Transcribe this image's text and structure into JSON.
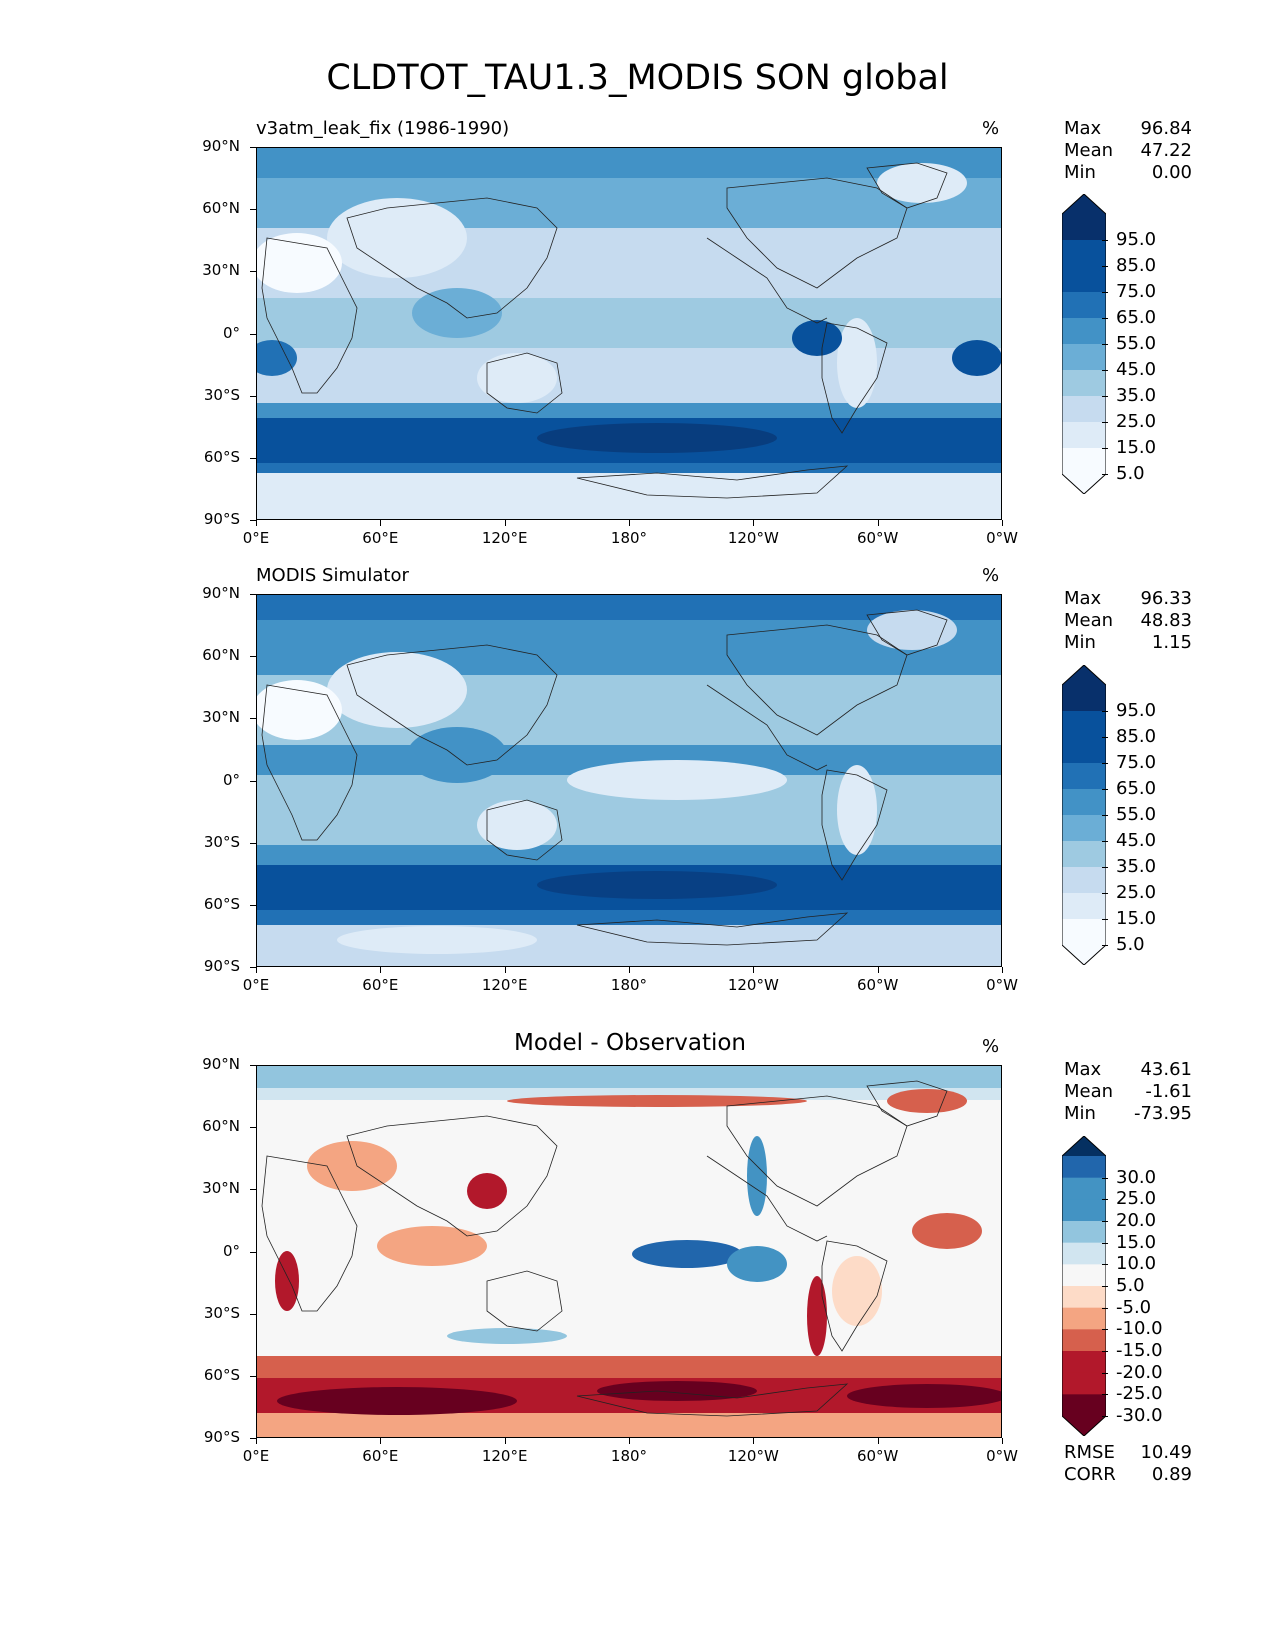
{
  "figure": {
    "title": "CLDTOT_TAU1.3_MODIS SON global"
  },
  "axes": {
    "lat_ticks": [
      "90°N",
      "60°N",
      "30°N",
      "0°",
      "30°S",
      "60°S",
      "90°S"
    ],
    "lon_ticks": [
      "0°E",
      "60°E",
      "120°E",
      "180°",
      "120°W",
      "60°W",
      "0°W"
    ]
  },
  "panels": [
    {
      "title": "v3atm_leak_fix (1986-1990)",
      "units": "%",
      "stats": [
        {
          "label": "Max",
          "value": "96.84"
        },
        {
          "label": "Mean",
          "value": "47.22"
        },
        {
          "label": "Min",
          "value": "0.00"
        }
      ],
      "colorbar_labels": [
        "95.0",
        "85.0",
        "75.0",
        "65.0",
        "55.0",
        "45.0",
        "35.0",
        "25.0",
        "15.0",
        "5.0"
      ]
    },
    {
      "title": "MODIS Simulator",
      "units": "%",
      "stats": [
        {
          "label": "Max",
          "value": "96.33"
        },
        {
          "label": "Mean",
          "value": "48.83"
        },
        {
          "label": "Min",
          "value": "1.15"
        }
      ],
      "colorbar_labels": [
        "95.0",
        "85.0",
        "75.0",
        "65.0",
        "55.0",
        "45.0",
        "35.0",
        "25.0",
        "15.0",
        "5.0"
      ]
    },
    {
      "title": "Model - Observation",
      "units": "%",
      "stats": [
        {
          "label": "Max",
          "value": "43.61"
        },
        {
          "label": "Mean",
          "value": "-1.61"
        },
        {
          "label": "Min",
          "value": "-73.95"
        }
      ],
      "colorbar_labels": [
        "30.0",
        "25.0",
        "20.0",
        "15.0",
        "10.0",
        "5.0",
        "-5.0",
        "-10.0",
        "-15.0",
        "-20.0",
        "-25.0",
        "-30.0"
      ],
      "metrics": [
        {
          "label": "RMSE",
          "value": "10.49"
        },
        {
          "label": "CORR",
          "value": "0.89"
        }
      ]
    }
  ],
  "colors": {
    "blues": [
      "#f7fbff",
      "#deebf7",
      "#c6dbef",
      "#9ecae1",
      "#6baed6",
      "#4292c6",
      "#2171b5",
      "#08519c",
      "#08306b"
    ],
    "diff_pos": [
      "#d1e5f0",
      "#92c5de",
      "#4393c3",
      "#2166ac",
      "#053061"
    ],
    "diff_neutral": "#f7f7f7",
    "diff_neg": [
      "#fddbc7",
      "#f4a582",
      "#d6604d",
      "#b2182b",
      "#67001f"
    ]
  }
}
